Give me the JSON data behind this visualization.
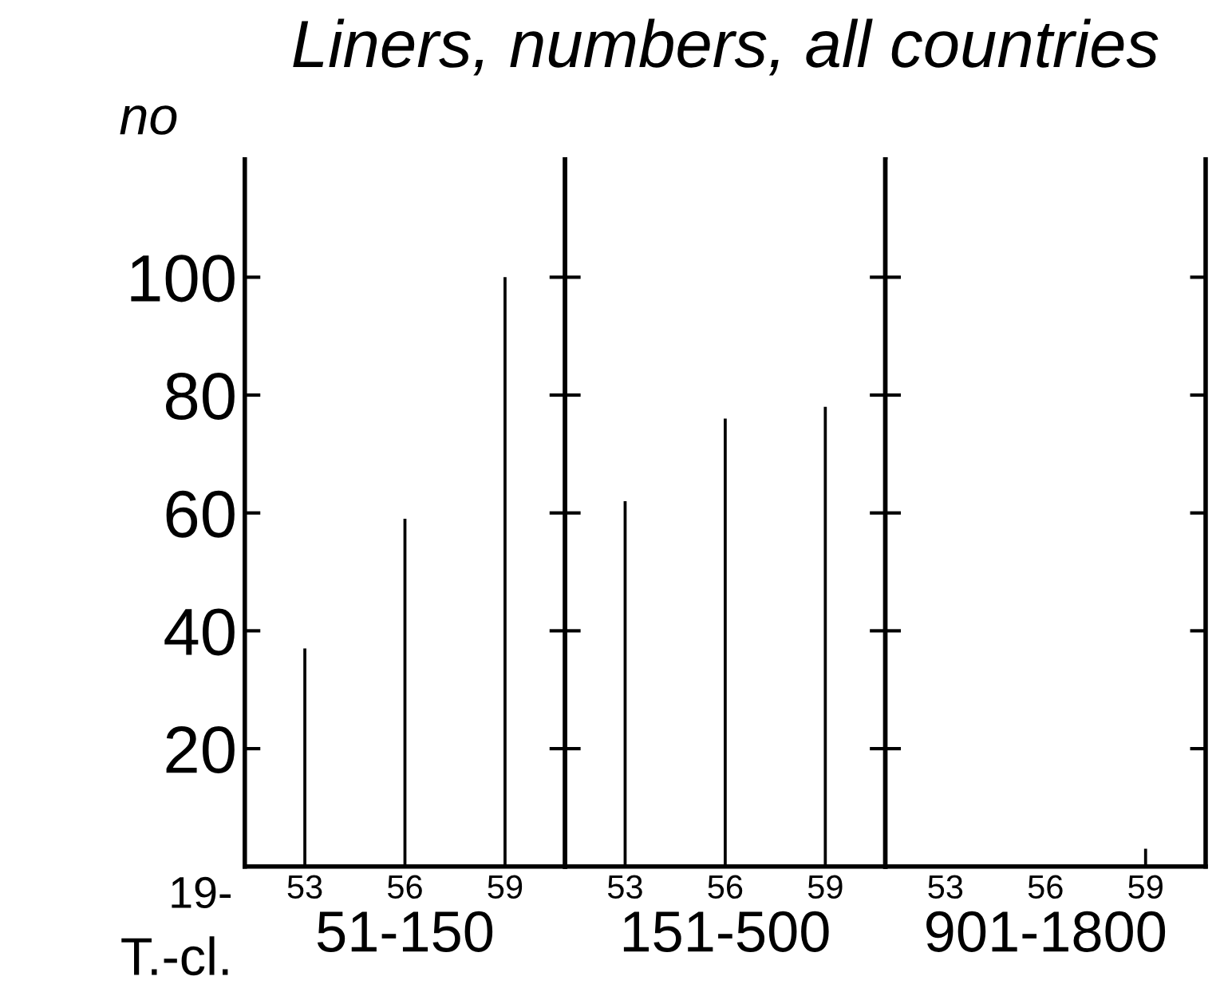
{
  "chart_data": [
    {
      "type": "bar",
      "title": "Liners, numbers, all countries",
      "ylabel": "no",
      "xlabel": "51-150",
      "categories": [
        "53",
        "56",
        "59"
      ],
      "values": [
        37,
        59,
        100
      ],
      "color": "#000000",
      "ylim": [
        0,
        120
      ],
      "yticks": [
        20,
        40,
        60,
        80,
        100
      ],
      "grid": false,
      "annotations": [
        "19-",
        "T.-cl."
      ]
    },
    {
      "type": "bar",
      "xlabel": "151-500",
      "categories": [
        "53",
        "56",
        "59"
      ],
      "values": [
        62,
        76,
        78
      ],
      "color": "#000000",
      "ylim": [
        0,
        120
      ],
      "yticks": [
        20,
        40,
        60,
        80,
        100
      ],
      "grid": false,
      "tick_labels": "x"
    },
    {
      "type": "bar",
      "xlabel": "901-1800",
      "categories": [
        "53",
        "56",
        "59"
      ],
      "values": [
        0,
        0,
        3
      ],
      "color": "#000000",
      "ylim": [
        0,
        120
      ],
      "yticks": [
        20,
        40,
        60,
        80,
        100
      ],
      "grid": false,
      "tick_labels": "x"
    }
  ]
}
